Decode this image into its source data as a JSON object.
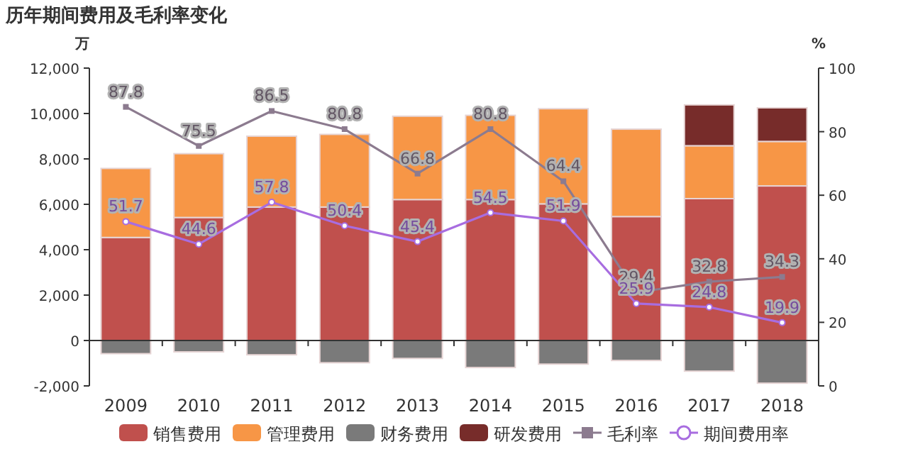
{
  "chart_data": {
    "type": "bar",
    "title": "历年期间费用及毛利率变化",
    "ylabel": "万",
    "y2label": "%",
    "stacked": true,
    "legend": "bottom",
    "categories": [
      "2009",
      "2010",
      "2011",
      "2012",
      "2013",
      "2014",
      "2015",
      "2016",
      "2017",
      "2018"
    ],
    "ylim": [
      -2000,
      12000
    ],
    "yticks": [
      {
        "value": -2000,
        "label": "-2,000"
      },
      0,
      {
        "value": 2000,
        "label": "2,000"
      },
      {
        "value": 4000,
        "label": "4,000"
      },
      {
        "value": 6000,
        "label": "6,000"
      },
      {
        "value": 8000,
        "label": "8,000"
      },
      {
        "value": 10000,
        "label": "10,000"
      },
      {
        "value": 12000,
        "label": "12,000"
      }
    ],
    "y2lim": [
      0,
      100
    ],
    "y2ticks": [
      0,
      20,
      40,
      60,
      80,
      100
    ],
    "series": [
      {
        "name": "销售费用",
        "color": "#c0504d",
        "values": [
          4540,
          5420,
          5880,
          5880,
          6210,
          6210,
          6020,
          5460,
          6250,
          6810
        ]
      },
      {
        "name": "管理费用",
        "color": "#f79646",
        "values": [
          3040,
          2810,
          3120,
          3200,
          3670,
          3710,
          4190,
          3850,
          2330,
          1960
        ]
      },
      {
        "name": "财务费用",
        "color": "#7a7a7a",
        "values": [
          -580,
          -500,
          -630,
          -980,
          -790,
          -1190,
          -1040,
          -880,
          -1350,
          -1880
        ]
      },
      {
        "name": "研发费用",
        "color": "#772c2a",
        "values": [
          null,
          null,
          null,
          null,
          null,
          null,
          null,
          null,
          1800,
          1480
        ]
      },
      {
        "name": "毛利率",
        "type": "line",
        "axis": "y2",
        "color": "#8c7b8f",
        "marker": "square",
        "values": [
          87.8,
          75.5,
          86.5,
          80.8,
          66.8,
          80.8,
          64.4,
          29.4,
          32.8,
          34.3
        ],
        "value_labels": [
          "87.8",
          "75.5",
          "86.5",
          "80.8",
          "66.8",
          "80.8",
          "64.4",
          "29.4",
          "32.8",
          "34.3"
        ]
      },
      {
        "name": "期间费用率",
        "type": "line",
        "axis": "y2",
        "color": "#a86de0",
        "marker": "circle",
        "values": [
          51.7,
          44.6,
          57.8,
          50.4,
          45.4,
          54.5,
          51.9,
          25.9,
          24.8,
          19.9
        ],
        "value_labels": [
          "51.7",
          "44.6",
          "57.8",
          "50.4",
          "45.4",
          "54.5",
          "51.9",
          "25.9",
          "24.8",
          "19.9"
        ]
      }
    ]
  }
}
